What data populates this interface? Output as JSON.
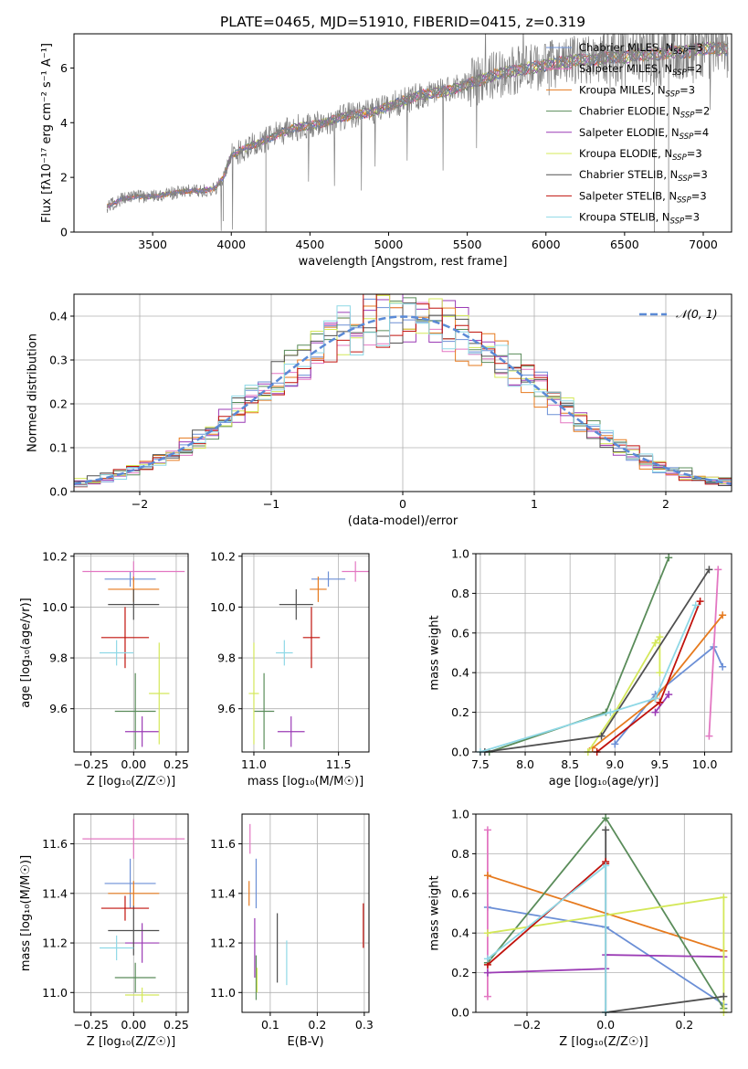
{
  "chart_data": [
    {
      "type": "line",
      "title": "PLATE=0465, MJD=51910, FIBERID=0415, z=0.319",
      "xlabel": "wavelength [Angstrom, rest frame]",
      "ylabel": "Flux [fλ10⁻¹⁷ erg cm⁻² s⁻¹ A⁻¹]",
      "xlim": [
        3000,
        7180
      ],
      "ylim": [
        0,
        7.25
      ],
      "xticks": [
        "3500",
        "4000",
        "4500",
        "5000",
        "5500",
        "6000",
        "6500",
        "7000"
      ],
      "yticks": [
        "0",
        "2",
        "4",
        "6"
      ],
      "grid": false,
      "legend_position": "top-right",
      "observed_spectrum": {
        "color": "#808080",
        "x": [
          3200,
          3300,
          3400,
          3500,
          3600,
          3700,
          3800,
          3900,
          3950,
          4000,
          4100,
          4200,
          4300,
          4400,
          4500,
          4600,
          4700,
          4800,
          4900,
          5000,
          5100,
          5200,
          5300,
          5400,
          5500,
          5600,
          5700,
          5800,
          5900,
          6000,
          6100,
          6200,
          6300,
          6400,
          6500,
          6600,
          6700,
          6800,
          6900,
          7000,
          7100
        ],
        "y": [
          0.9,
          1.2,
          1.3,
          1.3,
          1.4,
          1.5,
          1.5,
          1.6,
          2.0,
          2.8,
          3.1,
          3.3,
          3.6,
          3.8,
          3.9,
          4.0,
          4.2,
          4.3,
          4.4,
          4.6,
          4.8,
          5.0,
          5.1,
          5.2,
          5.4,
          5.6,
          5.8,
          5.9,
          6.0,
          6.1,
          6.2,
          6.3,
          6.3,
          6.4,
          6.4,
          6.5,
          6.5,
          6.6,
          6.6,
          6.7,
          6.7
        ]
      },
      "series": [
        {
          "name": "Chabrier MILES, N",
          "sub": "SSP",
          "suffix": "=3",
          "color": "#6b8fd6"
        },
        {
          "name": "Salpeter MILES, N",
          "sub": "SSP",
          "suffix": "=2",
          "color": "#e377c2"
        },
        {
          "name": "Kroupa MILES, N",
          "sub": "SSP",
          "suffix": "=3",
          "color": "#e67a1e"
        },
        {
          "name": "Chabrier ELODIE, N",
          "sub": "SSP",
          "suffix": "=2",
          "color": "#5a8c5a"
        },
        {
          "name": "Salpeter ELODIE, N",
          "sub": "SSP",
          "suffix": "=4",
          "color": "#9b3bb5"
        },
        {
          "name": "Kroupa ELODIE, N",
          "sub": "SSP",
          "suffix": "=3",
          "color": "#d4e85a"
        },
        {
          "name": "Chabrier STELIB, N",
          "sub": "SSP",
          "suffix": "=3",
          "color": "#505050"
        },
        {
          "name": "Salpeter STELIB, N",
          "sub": "SSP",
          "suffix": "=3",
          "color": "#c0120c"
        },
        {
          "name": "Kroupa STELIB, N",
          "sub": "SSP",
          "suffix": "=3",
          "color": "#8fd8e6"
        }
      ]
    },
    {
      "type": "line",
      "xlabel": "(data-model)/error",
      "ylabel": "Normed distribution",
      "xlim": [
        -2.5,
        2.5
      ],
      "ylim": [
        0,
        0.45
      ],
      "xticks": [
        "−2",
        "−1",
        "0",
        "1",
        "2"
      ],
      "yticks": [
        "0.0",
        "0.1",
        "0.2",
        "0.3",
        "0.4"
      ],
      "grid": true,
      "legend_position": "top-right",
      "legend": "𝒩(0, 1)",
      "gaussian": {
        "mean": 0,
        "sigma": 1,
        "color": "#5b8ad6"
      },
      "histogram_bin_width": 0.1
    },
    {
      "type": "scatter",
      "xlabel": "Z [log₁₀(Z/Z☉)]",
      "ylabel": "age  [log₁₀(age/yr)]",
      "xlim": [
        -0.35,
        0.32
      ],
      "ylim": [
        9.43,
        10.21
      ],
      "xticks": [
        "−0.25",
        "0.00",
        "0.25"
      ],
      "yticks": [
        "9.6",
        "9.8",
        "10.0",
        "10.2"
      ],
      "grid": true,
      "errorbars": [
        {
          "series": "Chabrier MILES",
          "x": -0.02,
          "xerr": 0.15,
          "y": 10.11,
          "yerr": 0.03
        },
        {
          "series": "Salpeter MILES",
          "x": 0.0,
          "xerr": 0.3,
          "y": 10.14,
          "yerr": 0.04
        },
        {
          "series": "Kroupa MILES",
          "x": 0.0,
          "xerr": 0.15,
          "y": 10.07,
          "yerr": 0.05
        },
        {
          "series": "Chabrier ELODIE",
          "x": 0.01,
          "xerr": 0.12,
          "y": 9.59,
          "yerr": 0.15
        },
        {
          "series": "Salpeter ELODIE",
          "x": 0.05,
          "xerr": 0.1,
          "y": 9.51,
          "yerr": 0.06
        },
        {
          "series": "Kroupa ELODIE",
          "x": 0.15,
          "xerr": 0.06,
          "y": 9.66,
          "yerr": 0.2
        },
        {
          "series": "Chabrier STELIB",
          "x": 0.0,
          "xerr": 0.15,
          "y": 10.01,
          "yerr": 0.06
        },
        {
          "series": "Salpeter STELIB",
          "x": -0.05,
          "xerr": 0.14,
          "y": 9.88,
          "yerr": 0.12
        },
        {
          "series": "Kroupa STELIB",
          "x": -0.1,
          "xerr": 0.1,
          "y": 9.82,
          "yerr": 0.05
        }
      ]
    },
    {
      "type": "scatter",
      "xlabel": "mass [log₁₀(M/M☉)]",
      "ylabel": "",
      "xlim": [
        10.93,
        11.68
      ],
      "ylim": [
        9.43,
        10.21
      ],
      "xticks": [
        "11.0",
        "11.5"
      ],
      "yticks": [
        "9.6",
        "9.8",
        "10.0",
        "10.2"
      ],
      "grid": true,
      "errorbars": [
        {
          "series": "Chabrier MILES",
          "x": 11.44,
          "xerr": 0.1,
          "y": 10.11,
          "yerr": 0.03
        },
        {
          "series": "Salpeter MILES",
          "x": 11.6,
          "xerr": 0.08,
          "y": 10.14,
          "yerr": 0.04
        },
        {
          "series": "Kroupa MILES",
          "x": 11.38,
          "xerr": 0.05,
          "y": 10.07,
          "yerr": 0.05
        },
        {
          "series": "Chabrier ELODIE",
          "x": 11.06,
          "xerr": 0.06,
          "y": 9.59,
          "yerr": 0.15
        },
        {
          "series": "Salpeter ELODIE",
          "x": 11.22,
          "xerr": 0.08,
          "y": 9.51,
          "yerr": 0.06
        },
        {
          "series": "Kroupa ELODIE",
          "x": 11.0,
          "xerr": 0.03,
          "y": 9.66,
          "yerr": 0.2
        },
        {
          "series": "Chabrier STELIB",
          "x": 11.25,
          "xerr": 0.1,
          "y": 10.01,
          "yerr": 0.06
        },
        {
          "series": "Salpeter STELIB",
          "x": 11.34,
          "xerr": 0.05,
          "y": 9.88,
          "yerr": 0.12
        },
        {
          "series": "Kroupa STELIB",
          "x": 11.18,
          "xerr": 0.05,
          "y": 9.82,
          "yerr": 0.05
        }
      ]
    },
    {
      "type": "line",
      "xlabel": "age  [log₁₀(age/yr)]",
      "ylabel": "mass weight",
      "xlim": [
        7.45,
        10.3
      ],
      "ylim": [
        0,
        1.0
      ],
      "xticks": [
        "7.5",
        "8.0",
        "8.5",
        "9.0",
        "9.5",
        "10.0"
      ],
      "yticks": [
        "0.0",
        "0.2",
        "0.4",
        "0.6",
        "0.8",
        "1.0"
      ],
      "grid": true,
      "series": [
        {
          "name": "Chabrier MILES",
          "x": [
            9.0,
            9.45,
            10.1,
            10.2
          ],
          "y": [
            0.04,
            0.29,
            0.53,
            0.43
          ]
        },
        {
          "name": "Salpeter MILES",
          "x": [
            10.05,
            10.15
          ],
          "y": [
            0.08,
            0.92
          ]
        },
        {
          "name": "Kroupa MILES",
          "x": [
            8.75,
            9.45,
            10.2
          ],
          "y": [
            0.02,
            0.27,
            0.69
          ]
        },
        {
          "name": "Chabrier ELODIE",
          "x": [
            7.6,
            8.9,
            9.6
          ],
          "y": [
            0.0,
            0.2,
            0.98
          ]
        },
        {
          "name": "Salpeter ELODIE",
          "x": [
            9.45,
            9.6
          ],
          "y": [
            0.2,
            0.29
          ]
        },
        {
          "name": "Kroupa ELODIE",
          "x": [
            8.7,
            9.0,
            9.45,
            9.5,
            9.5
          ],
          "y": [
            0.0,
            0.2,
            0.55,
            0.58,
            0.4
          ]
        },
        {
          "name": "Chabrier STELIB",
          "x": [
            7.55,
            8.85,
            10.05
          ],
          "y": [
            0.0,
            0.08,
            0.92
          ]
        },
        {
          "name": "Salpeter STELIB",
          "x": [
            8.8,
            9.5,
            9.95
          ],
          "y": [
            0.0,
            0.25,
            0.76
          ]
        },
        {
          "name": "Kroupa STELIB",
          "x": [
            7.5,
            8.95,
            9.45,
            9.9
          ],
          "y": [
            0.0,
            0.2,
            0.27,
            0.74
          ]
        }
      ]
    },
    {
      "type": "scatter",
      "xlabel": "Z [log₁₀(Z/Z☉)]",
      "ylabel": "mass [log₁₀(M/M☉)]",
      "xlim": [
        -0.35,
        0.32
      ],
      "ylim": [
        10.92,
        11.72
      ],
      "xticks": [
        "−0.25",
        "0.00",
        "0.25"
      ],
      "yticks": [
        "11.0",
        "11.2",
        "11.4",
        "11.6"
      ],
      "grid": true,
      "errorbars": [
        {
          "series": "Chabrier MILES",
          "x": -0.02,
          "xerr": 0.15,
          "y": 11.44,
          "yerr": 0.1
        },
        {
          "series": "Salpeter MILES",
          "x": 0.0,
          "xerr": 0.3,
          "y": 11.62,
          "yerr": 0.08
        },
        {
          "series": "Kroupa MILES",
          "x": 0.0,
          "xerr": 0.15,
          "y": 11.4,
          "yerr": 0.05
        },
        {
          "series": "Chabrier ELODIE",
          "x": 0.01,
          "xerr": 0.12,
          "y": 11.06,
          "yerr": 0.06
        },
        {
          "series": "Salpeter ELODIE",
          "x": 0.05,
          "xerr": 0.1,
          "y": 11.2,
          "yerr": 0.08
        },
        {
          "series": "Kroupa ELODIE",
          "x": 0.05,
          "xerr": 0.1,
          "y": 10.99,
          "yerr": 0.03
        },
        {
          "series": "Chabrier STELIB",
          "x": 0.0,
          "xerr": 0.15,
          "y": 11.25,
          "yerr": 0.1
        },
        {
          "series": "Salpeter STELIB",
          "x": -0.05,
          "xerr": 0.14,
          "y": 11.34,
          "yerr": 0.05
        },
        {
          "series": "Kroupa STELIB",
          "x": -0.1,
          "xerr": 0.1,
          "y": 11.18,
          "yerr": 0.05
        }
      ]
    },
    {
      "type": "scatter",
      "xlabel": "E(B-V)",
      "ylabel": "",
      "xlim": [
        0.04,
        0.31
      ],
      "ylim": [
        10.92,
        11.72
      ],
      "xticks": [
        "0.1",
        "0.2",
        "0.3"
      ],
      "yticks": [
        "11.0",
        "11.2",
        "11.4",
        "11.6"
      ],
      "grid": true,
      "errorbars": [
        {
          "series": "Chabrier MILES",
          "x": 0.07,
          "xerr": 0,
          "y": 11.44,
          "yerr": 0.1
        },
        {
          "series": "Salpeter MILES",
          "x": 0.057,
          "xerr": 0,
          "y": 11.62,
          "yerr": 0.06
        },
        {
          "series": "Kroupa MILES",
          "x": 0.055,
          "xerr": 0,
          "y": 11.4,
          "yerr": 0.05
        },
        {
          "series": "Chabrier ELODIE",
          "x": 0.07,
          "xerr": 0,
          "y": 11.06,
          "yerr": 0.09
        },
        {
          "series": "Salpeter ELODIE",
          "x": 0.067,
          "xerr": 0,
          "y": 11.18,
          "yerr": 0.12
        },
        {
          "series": "Kroupa ELODIE",
          "x": 0.072,
          "xerr": 0,
          "y": 11.05,
          "yerr": 0.05
        },
        {
          "series": "Chabrier STELIB",
          "x": 0.115,
          "xerr": 0,
          "y": 11.18,
          "yerr": 0.14
        },
        {
          "series": "Salpeter STELIB",
          "x": 0.298,
          "xerr": 0,
          "y": 11.27,
          "yerr": 0.09
        },
        {
          "series": "Kroupa STELIB",
          "x": 0.135,
          "xerr": 0,
          "y": 11.12,
          "yerr": 0.09
        }
      ]
    },
    {
      "type": "line",
      "xlabel": "Z [log₁₀(Z/Z☉)]",
      "ylabel": "mass weight",
      "xlim": [
        -0.33,
        0.32
      ],
      "ylim": [
        0,
        1.0
      ],
      "xticks": [
        "−0.2",
        "0.0",
        "0.2"
      ],
      "yticks": [
        "0.0",
        "0.2",
        "0.4",
        "0.6",
        "0.8",
        "1.0"
      ],
      "grid": true,
      "series": [
        {
          "name": "Chabrier MILES",
          "x": [
            -0.3,
            0.0,
            0.3
          ],
          "y": [
            0.53,
            0.43,
            0.04
          ]
        },
        {
          "name": "Salpeter MILES",
          "x": [
            -0.3,
            -0.3
          ],
          "y": [
            0.08,
            0.92
          ]
        },
        {
          "name": "Kroupa MILES",
          "x": [
            -0.3,
            0.3
          ],
          "y": [
            0.69,
            0.31
          ]
        },
        {
          "name": "Chabrier ELODIE",
          "x": [
            -0.3,
            0.0,
            0.3
          ],
          "y": [
            0.25,
            0.98,
            0.02
          ]
        },
        {
          "name": "Salpeter ELODIE",
          "x": [
            -0.3,
            0.0,
            0.0,
            0.3
          ],
          "y": [
            0.2,
            0.22,
            0.29,
            0.28
          ]
        },
        {
          "name": "Kroupa ELODIE",
          "x": [
            -0.3,
            0.3,
            0.3
          ],
          "y": [
            0.4,
            0.58,
            0.0
          ]
        },
        {
          "name": "Chabrier STELIB",
          "x": [
            0.0,
            0.0,
            0.3
          ],
          "y": [
            0.92,
            0.0,
            0.08
          ]
        },
        {
          "name": "Salpeter STELIB",
          "x": [
            -0.3,
            0.0,
            0.0
          ],
          "y": [
            0.24,
            0.76,
            0.75
          ]
        },
        {
          "name": "Kroupa STELIB",
          "x": [
            -0.3,
            0.0,
            0.0
          ],
          "y": [
            0.27,
            0.74,
            0.0
          ]
        }
      ]
    }
  ]
}
